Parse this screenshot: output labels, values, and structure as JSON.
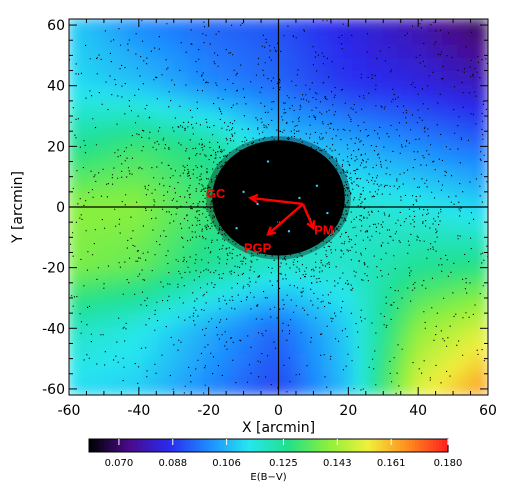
{
  "chart_data": {
    "type": "heatmap",
    "title": "",
    "xlabel": "X [arcmin]",
    "ylabel": "Y [arcmin]",
    "xlim": [
      -60,
      60
    ],
    "ylim": [
      -62,
      62
    ],
    "x_ticks": [
      "-60",
      "-40",
      "-20",
      "0",
      "20",
      "40",
      "60"
    ],
    "y_ticks": [
      "-60",
      "-40",
      "-20",
      "0",
      "20",
      "40",
      "60"
    ],
    "x_tick_values": [
      -60,
      -40,
      -20,
      0,
      20,
      40,
      60
    ],
    "y_tick_values": [
      -60,
      -40,
      -20,
      0,
      20,
      40,
      60
    ],
    "reference_lines": {
      "x": 0,
      "y": 0
    },
    "colorbar": {
      "label": "E(B−V)",
      "range": [
        0.06,
        0.18
      ],
      "ticks": [
        "0.070",
        "0.088",
        "0.106",
        "0.125",
        "0.143",
        "0.161",
        "0.180"
      ],
      "tick_values": [
        0.07,
        0.088,
        0.106,
        0.125,
        0.143,
        0.161,
        0.18
      ],
      "colors": [
        "#000000",
        "#4a0a8a",
        "#2a2aee",
        "#1e8cff",
        "#26e6f0",
        "#22e08a",
        "#8cf03c",
        "#f0f03c",
        "#ff8c1e",
        "#ff1e1e"
      ]
    },
    "heatmap_grid": {
      "x": [
        -60,
        -40,
        -20,
        0,
        20,
        40,
        60
      ],
      "y": [
        60,
        40,
        20,
        0,
        -20,
        -40,
        -60
      ],
      "values": [
        [
          0.11,
          0.1,
          0.095,
          0.092,
          0.085,
          0.078,
          0.068
        ],
        [
          0.112,
          0.108,
          0.1,
          0.095,
          0.088,
          0.085,
          0.08
        ],
        [
          0.125,
          0.13,
          0.125,
          0.11,
          0.105,
          0.1,
          0.095
        ],
        [
          0.14,
          0.14,
          0.13,
          0.12,
          0.118,
          0.115,
          0.11
        ],
        [
          0.138,
          0.135,
          0.125,
          0.118,
          0.118,
          0.125,
          0.128
        ],
        [
          0.12,
          0.115,
          0.105,
          0.095,
          0.11,
          0.14,
          0.15
        ],
        [
          0.112,
          0.11,
          0.1,
          0.09,
          0.108,
          0.15,
          0.165
        ]
      ]
    },
    "scatter_density": {
      "center": [
        0,
        3
      ],
      "core_radius": 19,
      "color": "#000000"
    },
    "annotations": [
      {
        "text": "GC",
        "x": -18,
        "y": 3
      },
      {
        "text": "PM",
        "x": 13,
        "y": -9
      },
      {
        "text": "PGP",
        "x": -6,
        "y": -15
      }
    ],
    "vectors": [
      {
        "name": "GC",
        "from": [
          7,
          1
        ],
        "to": [
          -8,
          3
        ]
      },
      {
        "name": "PM",
        "from": [
          7,
          1
        ],
        "to": [
          10,
          -7
        ]
      },
      {
        "name": "PGP",
        "from": [
          7,
          1
        ],
        "to": [
          -3,
          -9
        ]
      }
    ],
    "arrow_color": "#ff0000",
    "grid": false
  }
}
